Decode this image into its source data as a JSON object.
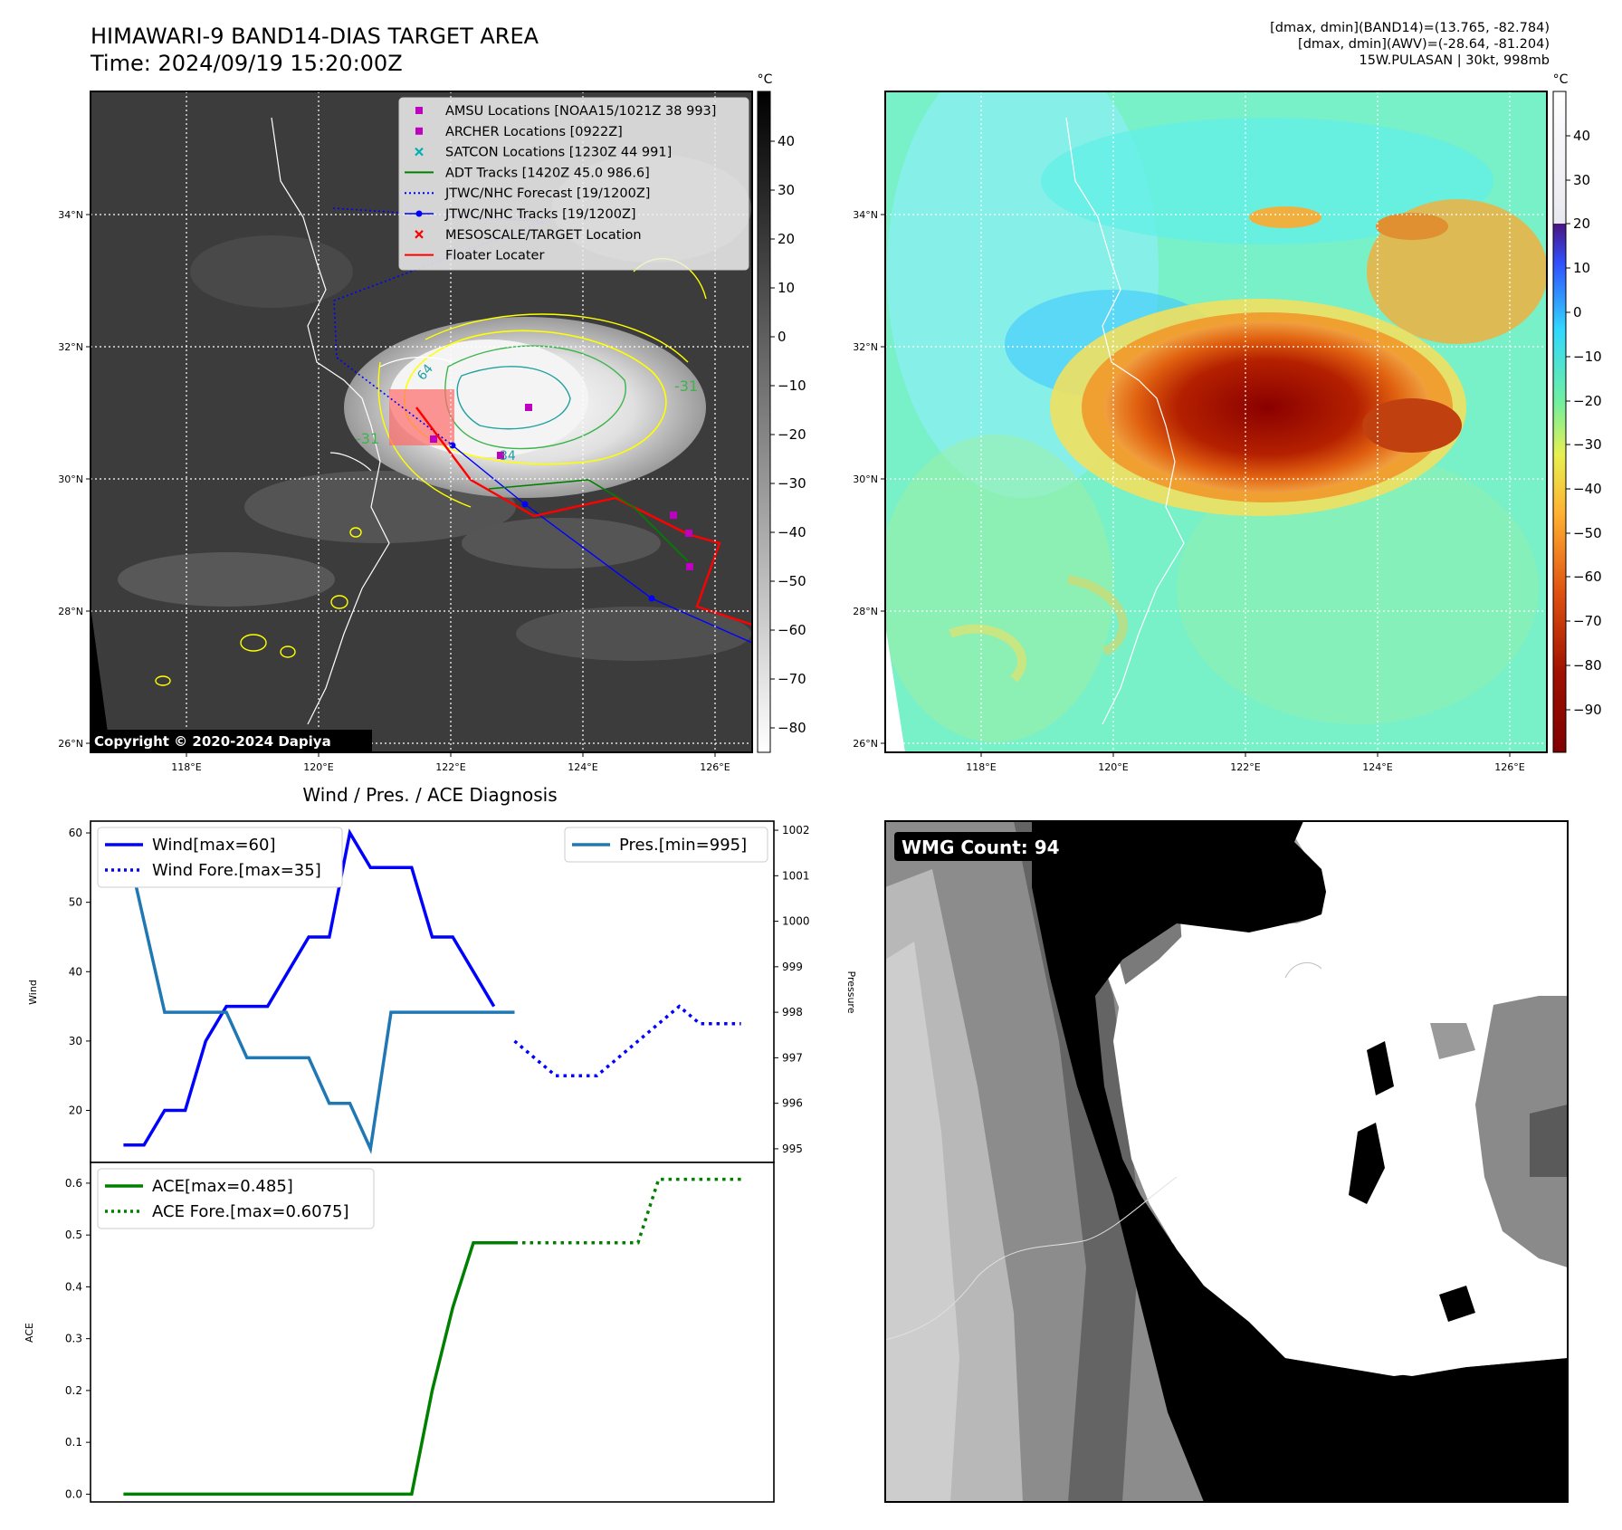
{
  "header": {
    "title_line1": "HIMAWARI-9 BAND14-DIAS TARGET AREA",
    "title_line2": "Time: 2024/09/19 15:20:00Z",
    "info_line1": "[dmax, dmin](BAND14)=(13.765, -82.784)",
    "info_line2": "[dmax, dmin](AWV)=(-28.64, -81.204)",
    "info_line3": "15W.PULASAN | 30kt, 998mb"
  },
  "maps": {
    "lat_labels": [
      "34°N",
      "32°N",
      "30°N",
      "28°N",
      "26°N"
    ],
    "lon_labels": [
      "118°E",
      "120°E",
      "122°E",
      "124°E",
      "126°E"
    ],
    "colorbar_unit": "°C",
    "left_colorbar_ticks": [
      "40",
      "30",
      "20",
      "10",
      "0",
      "−10",
      "−20",
      "−30",
      "−40",
      "−50",
      "−60",
      "−70",
      "−80"
    ],
    "right_colorbar_ticks": [
      "40",
      "30",
      "20",
      "10",
      "0",
      "−10",
      "−20",
      "−30",
      "−40",
      "−50",
      "−60",
      "−70",
      "−80",
      "−90"
    ],
    "copyright": "Copyright © 2020-2024 Dapiya",
    "contour_labels": [
      "-31",
      "-31",
      "64",
      "34"
    ],
    "legend": [
      {
        "label": "AMSU Locations [NOAA15/1021Z 38 993]",
        "marker": "square",
        "color": "#c000c0"
      },
      {
        "label": "ARCHER Locations [0922Z]",
        "marker": "square",
        "color": "#c000c0"
      },
      {
        "label": "SATCON Locations [1230Z 44 991]",
        "marker": "x",
        "color": "#00b0b0"
      },
      {
        "label": "ADT Tracks [1420Z 45.0 986.6]",
        "marker": "line",
        "color": "#008000"
      },
      {
        "label": "JTWC/NHC Forecast [19/1200Z]",
        "marker": "dotted",
        "color": "#0000ff"
      },
      {
        "label": "JTWC/NHC Tracks [19/1200Z]",
        "marker": "line-dot",
        "color": "#0000ff"
      },
      {
        "label": "MESOSCALE/TARGET Location",
        "marker": "x",
        "color": "#ff0000"
      },
      {
        "label": "Floater Locater",
        "marker": "line",
        "color": "#ff0000"
      }
    ],
    "wmg_label": "WMG Count: 94"
  },
  "chart_data": [
    {
      "type": "line",
      "title": "Wind / Pres. / ACE Diagnosis",
      "ylabel": "Wind",
      "y2label": "Pressure",
      "ylim": [
        12.5,
        61.7
      ],
      "y2lim": [
        994.7,
        1002.2
      ],
      "yticks": [
        20,
        30,
        40,
        50,
        60
      ],
      "y2ticks": [
        995,
        996,
        997,
        998,
        999,
        1000,
        1001,
        1002
      ],
      "series": [
        {
          "name": "Wind[max=60]",
          "axis": "left",
          "color": "#0000ff",
          "style": "solid",
          "x": [
            0,
            1,
            2,
            3,
            4,
            5,
            6,
            7,
            8,
            9,
            10,
            11,
            12,
            13,
            14,
            15,
            16,
            17,
            18
          ],
          "values": [
            15,
            15,
            20,
            20,
            30,
            35,
            35,
            35,
            40,
            45,
            45,
            60,
            55,
            55,
            55,
            45,
            45,
            40,
            35
          ]
        },
        {
          "name": "Wind Fore.[max=35]",
          "axis": "left",
          "color": "#0000ff",
          "style": "dotted",
          "x": [
            19,
            20,
            21,
            22,
            23,
            24,
            25,
            26,
            27,
            28,
            29,
            30
          ],
          "values": [
            30,
            27.5,
            25,
            25,
            25,
            27.5,
            30,
            32.5,
            35,
            32.5,
            32.5,
            32.5
          ]
        },
        {
          "name": "Pres.[min=995]",
          "axis": "right",
          "color": "#1f77b4",
          "style": "solid",
          "x": [
            0,
            1,
            2,
            3,
            4,
            5,
            6,
            7,
            8,
            9,
            10,
            11,
            12,
            13,
            14,
            15,
            16,
            17,
            18,
            19
          ],
          "values": [
            1002,
            1000,
            998,
            998,
            998,
            998,
            997,
            997,
            997,
            997,
            996,
            996,
            995,
            998,
            998,
            998,
            998,
            998,
            998,
            998
          ]
        }
      ],
      "legend_left": [
        "Wind[max=60]",
        "Wind Fore.[max=35]"
      ],
      "legend_right": [
        "Pres.[min=995]"
      ]
    },
    {
      "type": "line",
      "ylabel": "ACE",
      "ylim": [
        -0.015,
        0.64
      ],
      "yticks": [
        0.0,
        0.1,
        0.2,
        0.3,
        0.4,
        0.5,
        0.6
      ],
      "ytick_labels": [
        "0.0",
        "0.1",
        "0.2",
        "0.3",
        "0.4",
        "0.5",
        "0.6"
      ],
      "series": [
        {
          "name": "ACE[max=0.485]",
          "color": "#008000",
          "style": "solid",
          "x": [
            0,
            14,
            15,
            16,
            17,
            18,
            19
          ],
          "values": [
            0,
            0,
            0.2,
            0.36,
            0.485,
            0.485,
            0.485
          ]
        },
        {
          "name": "ACE Fore.[max=0.6075]",
          "color": "#008000",
          "style": "dotted",
          "x": [
            19,
            25,
            26,
            30
          ],
          "values": [
            0.485,
            0.485,
            0.6075,
            0.6075
          ]
        }
      ]
    }
  ]
}
